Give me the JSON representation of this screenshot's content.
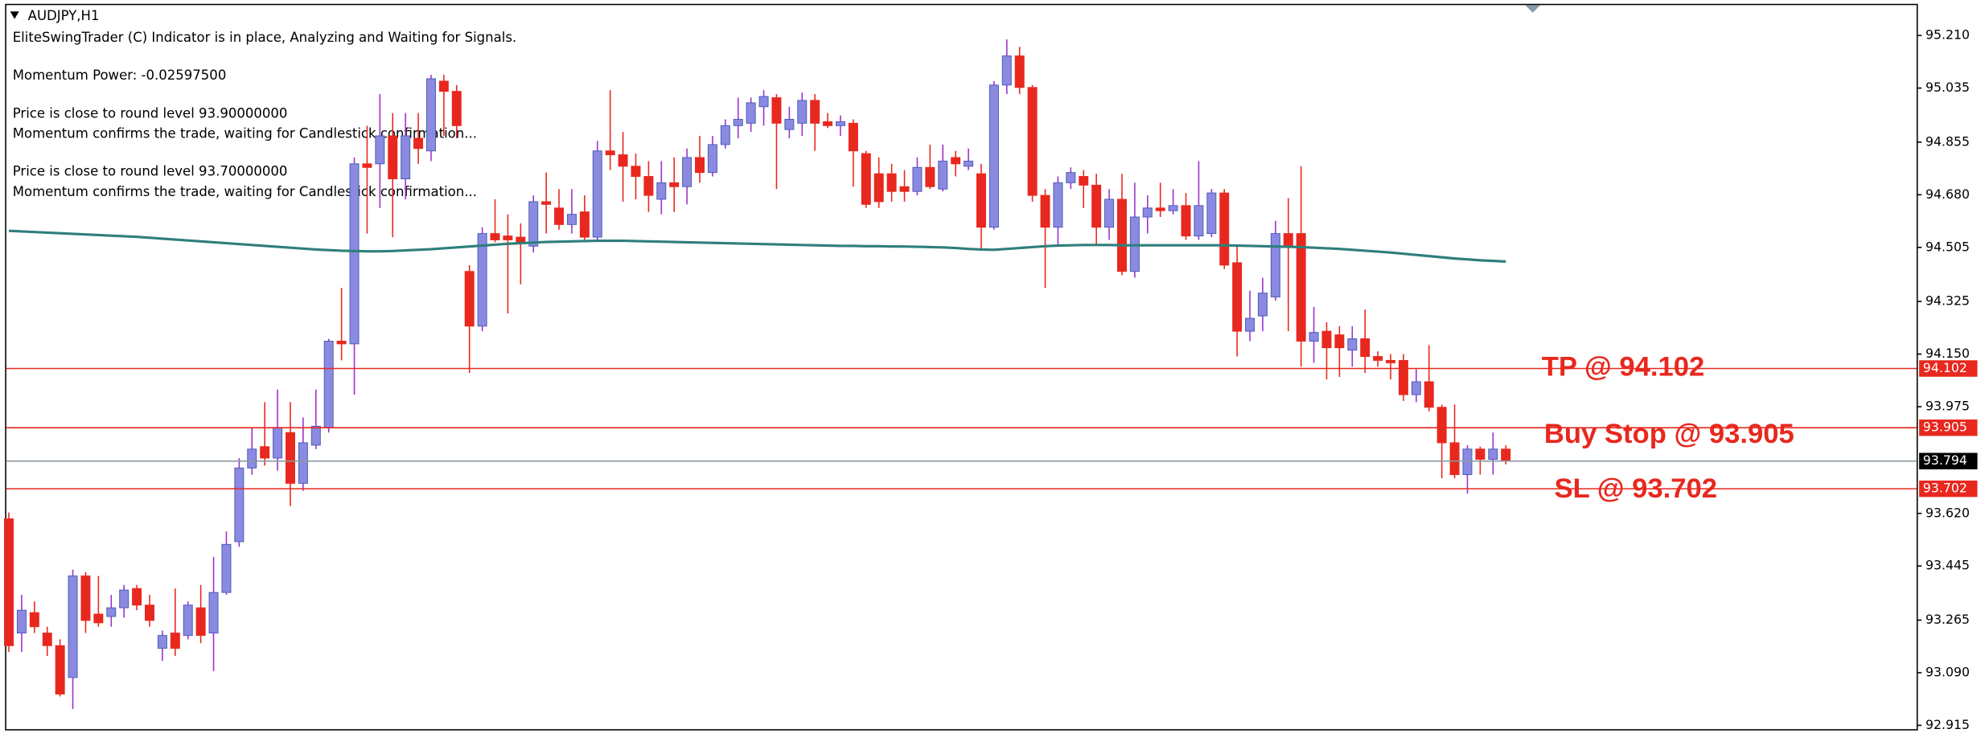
{
  "chart_data": {
    "type": "candlestick",
    "title": "AUDJPY,H1",
    "info_lines": [
      "EliteSwingTrader (C) Indicator is in place, Analyzing and Waiting for Signals.",
      "Momentum Power: -0.02597500",
      "Price is close to round level 93.90000000",
      "Momentum confirms the trade, waiting for Candlestick confirmation...",
      "Price is close to round level 93.70000000",
      "Momentum confirms the trade, waiting for Candlestick confirmation..."
    ],
    "up_color": "#8a8ae0",
    "up_wick": "#9b30d0",
    "down_color": "#e8281e",
    "open": [
      93.602,
      93.222,
      93.29,
      93.222,
      93.18,
      93.074,
      93.412,
      93.285,
      93.277,
      93.306,
      93.37,
      93.315,
      93.171,
      93.222,
      93.214,
      93.306,
      93.222,
      93.357,
      93.526,
      93.771,
      93.842,
      93.804,
      93.889,
      93.72,
      93.847,
      93.906,
      94.193,
      94.184,
      94.783,
      94.783,
      94.876,
      94.733,
      94.868,
      94.826,
      95.058,
      95.024,
      94.425,
      94.243,
      94.551,
      94.543,
      94.539,
      94.509,
      94.657,
      94.636,
      94.581,
      94.623,
      94.539,
      94.826,
      94.813,
      94.775,
      94.741,
      94.665,
      94.72,
      94.707,
      94.804,
      94.754,
      94.847,
      94.91,
      94.918,
      94.973,
      95.003,
      94.897,
      94.918,
      94.994,
      94.923,
      94.91,
      94.918,
      94.817,
      94.75,
      94.75,
      94.707,
      94.691,
      94.771,
      94.699,
      94.804,
      94.775,
      94.75,
      94.572,
      95.045,
      95.142,
      95.037,
      94.678,
      94.572,
      94.72,
      94.741,
      94.712,
      94.572,
      94.665,
      94.425,
      94.606,
      94.636,
      94.627,
      94.644,
      94.543,
      94.551,
      94.686,
      94.454,
      94.226,
      94.277,
      94.34,
      94.551,
      94.551,
      94.193,
      94.226,
      94.214,
      94.163,
      94.201,
      94.142,
      94.129,
      94.129,
      94.015,
      94.058,
      93.973,
      93.855,
      93.749,
      93.834,
      93.8,
      93.834
    ],
    "high": [
      93.623,
      93.349,
      93.327,
      93.243,
      93.201,
      93.433,
      93.425,
      93.412,
      93.349,
      93.382,
      93.382,
      93.349,
      93.23,
      93.37,
      93.327,
      93.382,
      93.475,
      93.56,
      93.804,
      93.906,
      93.99,
      94.032,
      93.99,
      93.939,
      94.032,
      94.201,
      94.37,
      94.804,
      94.91,
      95.015,
      94.952,
      94.952,
      94.952,
      95.079,
      95.079,
      95.045,
      94.446,
      94.572,
      94.665,
      94.615,
      94.585,
      94.678,
      94.754,
      94.699,
      94.699,
      94.678,
      94.859,
      95.028,
      94.889,
      94.817,
      94.792,
      94.792,
      94.804,
      94.834,
      94.876,
      94.876,
      94.931,
      95.003,
      95.003,
      95.028,
      95.015,
      94.973,
      95.02,
      95.015,
      94.952,
      94.944,
      94.931,
      94.826,
      94.804,
      94.783,
      94.762,
      94.804,
      94.847,
      94.847,
      94.826,
      94.834,
      94.783,
      95.058,
      95.197,
      95.172,
      95.045,
      94.699,
      94.741,
      94.771,
      94.762,
      94.75,
      94.699,
      94.75,
      94.72,
      94.678,
      94.72,
      94.699,
      94.686,
      94.792,
      94.699,
      94.699,
      94.509,
      94.361,
      94.404,
      94.593,
      94.669,
      94.775,
      94.307,
      94.256,
      94.243,
      94.243,
      94.298,
      94.159,
      94.15,
      94.15,
      94.1,
      94.18,
      93.982,
      93.982,
      93.847,
      93.842,
      93.889,
      93.847
    ],
    "low": [
      93.159,
      93.159,
      93.222,
      93.146,
      93.011,
      92.969,
      93.222,
      93.243,
      93.243,
      93.273,
      93.298,
      93.243,
      93.129,
      93.146,
      93.201,
      93.188,
      93.095,
      93.349,
      93.509,
      93.749,
      93.779,
      93.762,
      93.644,
      93.695,
      93.834,
      93.889,
      94.129,
      94.015,
      94.551,
      94.636,
      94.539,
      94.665,
      94.783,
      94.792,
      94.876,
      94.868,
      94.087,
      94.226,
      94.522,
      94.285,
      94.382,
      94.488,
      94.551,
      94.564,
      94.551,
      94.53,
      94.53,
      94.762,
      94.657,
      94.665,
      94.623,
      94.615,
      94.623,
      94.648,
      94.72,
      94.741,
      94.834,
      94.868,
      94.889,
      94.91,
      94.699,
      94.868,
      94.876,
      94.826,
      94.902,
      94.876,
      94.707,
      94.636,
      94.636,
      94.657,
      94.657,
      94.678,
      94.699,
      94.691,
      94.741,
      94.762,
      94.496,
      94.564,
      95.015,
      95.015,
      94.657,
      94.37,
      94.509,
      94.699,
      94.636,
      94.509,
      94.53,
      94.412,
      94.404,
      94.551,
      94.606,
      94.615,
      94.53,
      94.53,
      94.539,
      94.433,
      94.142,
      94.193,
      94.226,
      94.328,
      94.226,
      94.108,
      94.121,
      94.066,
      94.074,
      94.108,
      94.087,
      94.108,
      94.066,
      93.994,
      93.99,
      93.96,
      93.737,
      93.737,
      93.686,
      93.749,
      93.749,
      93.783
    ],
    "close": [
      93.18,
      93.298,
      93.243,
      93.18,
      93.019,
      93.412,
      93.264,
      93.256,
      93.306,
      93.365,
      93.315,
      93.264,
      93.214,
      93.171,
      93.315,
      93.214,
      93.357,
      93.517,
      93.771,
      93.834,
      93.804,
      93.906,
      93.72,
      93.855,
      93.91,
      94.193,
      94.184,
      94.783,
      94.771,
      94.876,
      94.733,
      94.876,
      94.834,
      95.066,
      95.024,
      94.91,
      94.243,
      94.551,
      94.53,
      94.53,
      94.518,
      94.657,
      94.648,
      94.581,
      94.615,
      94.539,
      94.826,
      94.813,
      94.775,
      94.741,
      94.678,
      94.72,
      94.707,
      94.804,
      94.754,
      94.847,
      94.91,
      94.931,
      94.986,
      95.007,
      94.918,
      94.931,
      94.994,
      94.918,
      94.91,
      94.923,
      94.826,
      94.648,
      94.657,
      94.691,
      94.691,
      94.771,
      94.707,
      94.792,
      94.783,
      94.792,
      94.572,
      95.045,
      95.142,
      95.037,
      94.678,
      94.572,
      94.72,
      94.754,
      94.712,
      94.572,
      94.665,
      94.425,
      94.606,
      94.636,
      94.627,
      94.644,
      94.543,
      94.644,
      94.686,
      94.446,
      94.226,
      94.269,
      94.353,
      94.551,
      94.509,
      94.193,
      94.222,
      94.171,
      94.171,
      94.201,
      94.142,
      94.129,
      94.121,
      94.015,
      94.058,
      93.973,
      93.855,
      93.749,
      93.834,
      93.8,
      93.834,
      93.794
    ],
    "ma": {
      "color": "#2f7f7b",
      "values": [
        94.56,
        94.558,
        94.556,
        94.554,
        94.552,
        94.55,
        94.548,
        94.546,
        94.544,
        94.542,
        94.54,
        94.537,
        94.534,
        94.531,
        94.528,
        94.525,
        94.522,
        94.519,
        94.516,
        94.513,
        94.51,
        94.507,
        94.504,
        94.501,
        94.498,
        94.496,
        94.494,
        94.493,
        94.492,
        94.492,
        94.493,
        94.495,
        94.497,
        94.499,
        94.502,
        94.505,
        94.508,
        94.511,
        94.514,
        94.517,
        94.519,
        94.521,
        94.523,
        94.524,
        94.525,
        94.526,
        94.527,
        94.527,
        94.527,
        94.526,
        94.525,
        94.524,
        94.523,
        94.522,
        94.521,
        94.52,
        94.519,
        94.518,
        94.517,
        94.516,
        94.515,
        94.514,
        94.513,
        94.512,
        94.511,
        94.51,
        94.51,
        94.509,
        94.509,
        94.508,
        94.508,
        94.507,
        94.506,
        94.505,
        94.503,
        94.5,
        94.498,
        94.497,
        94.5,
        94.503,
        94.506,
        94.509,
        94.511,
        94.512,
        94.513,
        94.513,
        94.513,
        94.512,
        94.512,
        94.512,
        94.512,
        94.512,
        94.512,
        94.512,
        94.512,
        94.512,
        94.511,
        94.51,
        94.509,
        94.508,
        94.507,
        94.506,
        94.504,
        94.502,
        94.5,
        94.497,
        94.494,
        94.491,
        94.488,
        94.484,
        94.48,
        94.476,
        94.472,
        94.468,
        94.465,
        94.462,
        94.46,
        94.458
      ]
    },
    "levels": [
      {
        "annotation": "TP @ 94.102",
        "value": 94.102,
        "color": "#e8281e"
      },
      {
        "annotation": "Buy Stop @ 93.905",
        "value": 93.905,
        "color": "#e8281e"
      },
      {
        "annotation": "SL @ 93.702",
        "value": 93.702,
        "color": "#e8281e"
      }
    ],
    "current_price": {
      "value": 93.794,
      "color": "#8a9aa0"
    },
    "ylim": [
      92.898,
      95.311
    ],
    "yticks": [
      {
        "value": 95.21,
        "label": "95.210"
      },
      95.035,
      94.855,
      {
        "value": 94.68,
        "label": "94.680"
      },
      94.505,
      94.325,
      {
        "value": 94.15,
        "label": "94.150"
      },
      93.975,
      {
        "value": 93.62,
        "label": "93.620"
      },
      93.445,
      93.265,
      {
        "value": 93.09,
        "label": "93.090"
      },
      92.915
    ]
  }
}
